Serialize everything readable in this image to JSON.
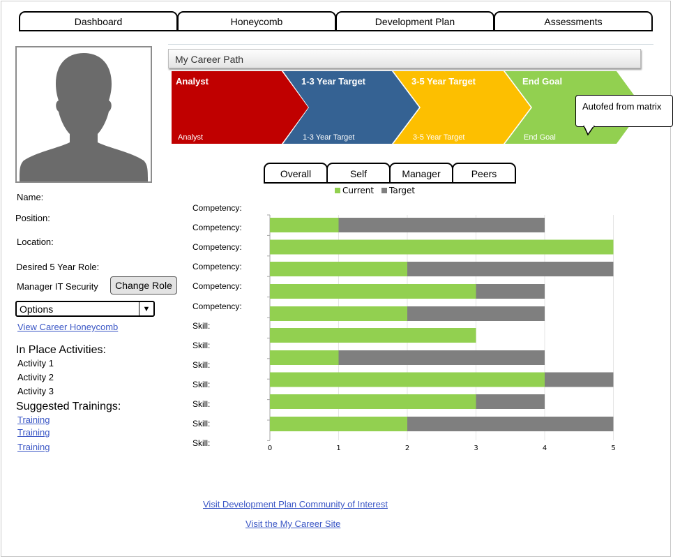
{
  "tabs": [
    "Dashboard",
    "Honeycomb",
    "Development Plan",
    "Assessments"
  ],
  "profile": {
    "name_label": "Name:",
    "position_label": "Position:",
    "location_label": "Location:",
    "desired_role_label": "Desired 5 Year Role:",
    "desired_role_value": "Manager IT Security",
    "change_role_button": "Change Role",
    "options_value": "Options",
    "view_honeycomb_link": "View Career Honeycomb"
  },
  "activities": {
    "heading": "In Place Activities:",
    "items": [
      "Activity 1",
      "Activity 2",
      "Activity 3"
    ]
  },
  "trainings": {
    "heading": "Suggested Trainings:",
    "items": [
      "Training",
      "Training",
      "Training"
    ]
  },
  "career_path": {
    "title": "My Career Path",
    "stages": [
      {
        "title": "Analyst",
        "subtitle": "Analyst",
        "color": "#c00000"
      },
      {
        "title": "1-3 Year Target",
        "subtitle": "1-3 Year Target",
        "color": "#356293"
      },
      {
        "title": "3-5 Year Target",
        "subtitle": "3-5 Year Target",
        "color": "#fdbf00"
      },
      {
        "title": "End Goal",
        "subtitle": "End Goal",
        "color": "#92d050"
      }
    ],
    "callout": "Autofed from matrix"
  },
  "assessment_tabs": [
    "Overall",
    "Self",
    "Manager",
    "Peers"
  ],
  "row_labels": [
    "Competency:",
    "Competency:",
    "Competency:",
    "Competency:",
    "Competency:",
    "Competency:",
    "Skill:",
    "Skill:",
    "Skill:",
    "Skill:",
    "Skill:",
    "Skill:",
    "Skill:"
  ],
  "colors": {
    "current": "#92d050",
    "target": "#7f7f7f",
    "link": "#3a56c5"
  },
  "chart_data": {
    "type": "bar",
    "orientation": "horizontal",
    "stacked": true,
    "xlim": [
      0,
      5
    ],
    "xticks": [
      "0",
      "1",
      "2",
      "3",
      "4",
      "5"
    ],
    "grid": true,
    "legend_position": "top",
    "series": [
      {
        "name": "Current",
        "values": [
          1,
          5,
          2,
          3,
          2,
          3,
          1,
          4,
          3,
          2
        ]
      },
      {
        "name": "Target",
        "values": [
          3,
          0,
          3,
          1,
          2,
          0,
          3,
          1,
          1,
          3
        ]
      }
    ]
  },
  "footer": {
    "community_link": "Visit Development Plan Community of Interest",
    "career_site_link": "Visit the My Career Site"
  }
}
